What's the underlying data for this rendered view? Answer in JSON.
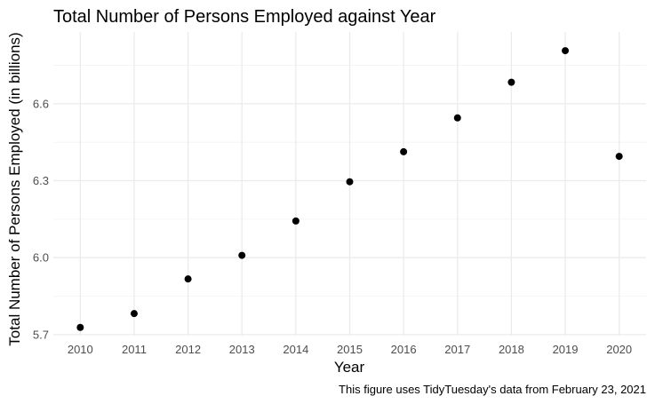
{
  "chart_data": {
    "type": "scatter",
    "title": "Total Number of Persons Employed against Year",
    "xlabel": "Year",
    "ylabel": "Total Number of Persons Employed (in billions)",
    "caption": "This figure uses TidyTuesday's data from February 23, 2021",
    "x": [
      2010,
      2011,
      2012,
      2013,
      2014,
      2015,
      2016,
      2017,
      2018,
      2019,
      2020
    ],
    "y": [
      5.728,
      5.782,
      5.917,
      6.009,
      6.143,
      6.296,
      6.413,
      6.545,
      6.684,
      6.807,
      6.395
    ],
    "xticks": [
      "2010",
      "2011",
      "2012",
      "2013",
      "2014",
      "2015",
      "2016",
      "2017",
      "2018",
      "2019",
      "2020"
    ],
    "yticks": [
      "5.7",
      "6.0",
      "6.3",
      "6.6"
    ],
    "ytick_values": [
      5.7,
      6.0,
      6.3,
      6.6
    ],
    "xlim": [
      2009.5,
      2020.5
    ],
    "ylim": [
      5.696,
      6.88
    ],
    "grid": true,
    "legend": "none",
    "point_color": "#000000"
  }
}
